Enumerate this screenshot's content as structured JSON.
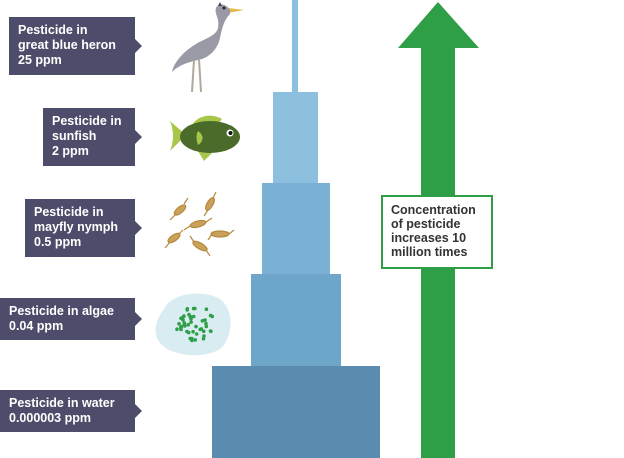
{
  "levels": [
    {
      "lines": [
        "Pesticide in",
        "great blue heron",
        "25 ppm"
      ],
      "icon": "heron-icon"
    },
    {
      "lines": [
        "Pesticide in",
        "sunfish",
        "2 ppm"
      ],
      "icon": "fish-icon"
    },
    {
      "lines": [
        "Pesticide in",
        "mayfly nymph",
        "0.5 ppm"
      ],
      "icon": "mayfly-icon"
    },
    {
      "lines": [
        "Pesticide in algae",
        "0.04 ppm"
      ],
      "icon": "algae-icon"
    },
    {
      "lines": [
        "Pesticide in water",
        "0.000003 ppm"
      ],
      "icon": null
    }
  ],
  "callout": {
    "lines": [
      "Concentration",
      "of pesticide",
      "increases 10",
      "million times"
    ]
  },
  "colors": {
    "label_bg": "#4d4d6b",
    "arrow": "#2e9e47",
    "tower": [
      "#8dbfdf",
      "#7ab0d3",
      "#6ea6c9",
      "#6396b9",
      "#5a8caf"
    ]
  }
}
